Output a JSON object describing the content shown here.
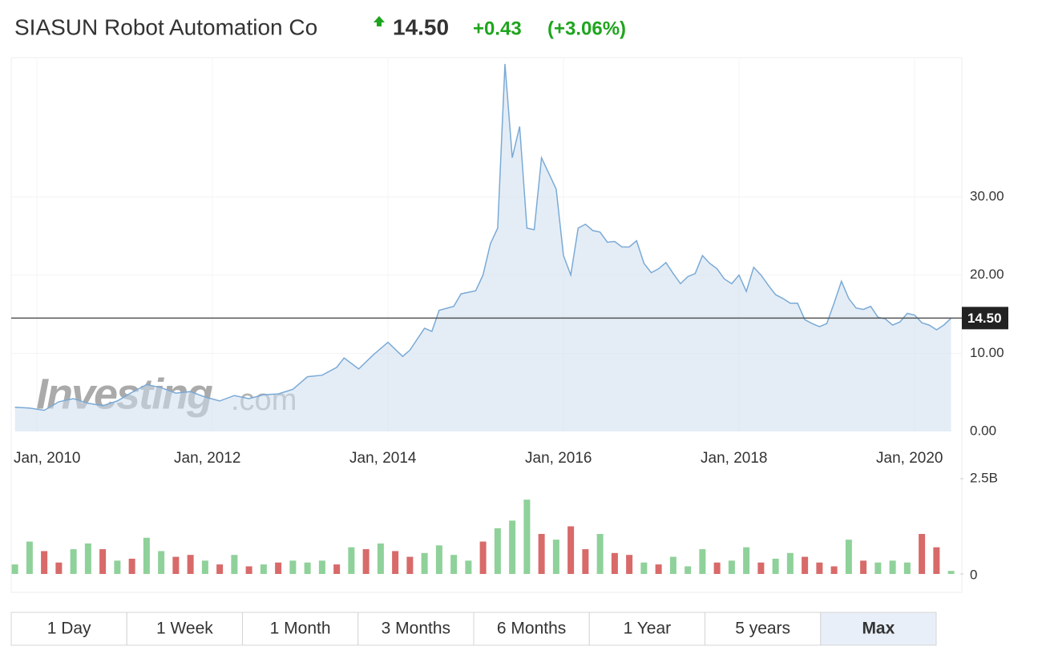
{
  "header": {
    "title": "SIASUN Robot Automation Co",
    "price": "14.50",
    "change": "+0.43",
    "change_pct": "(+3.06%)"
  },
  "watermark": {
    "brand": "Investing",
    "suffix": ".com"
  },
  "chart_data": [
    {
      "type": "area",
      "color": "#7aaad6",
      "x": [
        "2009-10",
        "2009-12",
        "2010-02",
        "2010-04",
        "2010-06",
        "2010-08",
        "2010-10",
        "2010-12",
        "2011-02",
        "2011-04",
        "2011-06",
        "2011-08",
        "2011-10",
        "2011-12",
        "2012-02",
        "2012-04",
        "2012-06",
        "2012-08",
        "2012-10",
        "2012-12",
        "2013-02",
        "2013-04",
        "2013-06",
        "2013-07",
        "2013-09",
        "2013-11",
        "2014-01",
        "2014-03",
        "2014-04",
        "2014-06",
        "2014-07",
        "2014-08",
        "2014-10",
        "2014-11",
        "2015-01",
        "2015-02",
        "2015-03",
        "2015-04",
        "2015-05",
        "2015-06",
        "2015-07",
        "2015-08",
        "2015-09",
        "2015-10",
        "2015-11",
        "2015-12",
        "2016-01",
        "2016-02",
        "2016-03",
        "2016-04",
        "2016-05",
        "2016-06",
        "2016-07",
        "2016-08",
        "2016-09",
        "2016-10",
        "2016-11",
        "2016-12",
        "2017-01",
        "2017-02",
        "2017-03",
        "2017-04",
        "2017-05",
        "2017-06",
        "2017-07",
        "2017-08",
        "2017-09",
        "2017-10",
        "2017-11",
        "2017-12",
        "2018-01",
        "2018-02",
        "2018-03",
        "2018-04",
        "2018-05",
        "2018-06",
        "2018-07",
        "2018-08",
        "2018-09",
        "2018-10",
        "2018-11",
        "2018-12",
        "2019-01",
        "2019-02",
        "2019-03",
        "2019-04",
        "2019-05",
        "2019-06",
        "2019-07",
        "2019-08",
        "2019-09",
        "2019-10",
        "2019-11",
        "2019-12",
        "2020-01",
        "2020-02",
        "2020-03",
        "2020-04",
        "2020-05",
        "2020-06"
      ],
      "values": [
        3.1,
        3.0,
        2.7,
        3.8,
        4.2,
        3.6,
        3.3,
        3.9,
        5.0,
        6.0,
        5.6,
        4.9,
        5.1,
        4.4,
        3.9,
        4.6,
        4.2,
        4.7,
        4.8,
        5.4,
        7.0,
        7.2,
        8.2,
        9.4,
        8.0,
        9.8,
        11.4,
        9.6,
        10.4,
        13.2,
        12.8,
        15.5,
        16.0,
        17.6,
        18.0,
        20.0,
        24.0,
        26.0,
        47.0,
        35.0,
        39.0,
        26.0,
        25.8,
        35.0,
        33.0,
        31.0,
        22.5,
        20.0,
        26.0,
        26.5,
        25.7,
        25.5,
        24.2,
        24.3,
        23.6,
        23.6,
        24.4,
        21.5,
        20.3,
        20.8,
        21.6,
        20.2,
        18.9,
        19.8,
        20.2,
        22.5,
        21.5,
        20.8,
        19.5,
        18.9,
        20.0,
        17.9,
        21.0,
        20.0,
        18.7,
        17.5,
        17.0,
        16.4,
        16.4,
        14.3,
        13.8,
        13.4,
        13.8,
        16.4,
        19.2,
        17.0,
        15.8,
        15.6,
        16.0,
        14.6,
        14.4,
        13.6,
        14.0,
        15.1,
        14.9,
        13.9,
        13.6,
        13.0,
        13.6,
        14.5
      ],
      "ylim": [
        0,
        47.5
      ],
      "yticks": [
        {
          "value": 0,
          "label": "0.00"
        },
        {
          "value": 10,
          "label": "10.00"
        },
        {
          "value": 20,
          "label": "20.00"
        },
        {
          "value": 30,
          "label": "30.00"
        }
      ],
      "xticks": [
        {
          "value": "2010-01",
          "label": "Jan, 2010"
        },
        {
          "value": "2012-01",
          "label": "Jan, 2012"
        },
        {
          "value": "2014-01",
          "label": "Jan, 2014"
        },
        {
          "value": "2016-01",
          "label": "Jan, 2016"
        },
        {
          "value": "2018-01",
          "label": "Jan, 2018"
        },
        {
          "value": "2020-01",
          "label": "Jan, 2020"
        }
      ],
      "current_price": {
        "value": 14.5,
        "label": "14.50"
      },
      "grid": true
    },
    {
      "type": "bar",
      "x": [
        "2009-10",
        "2009-12",
        "2010-02",
        "2010-04",
        "2010-06",
        "2010-08",
        "2010-10",
        "2010-12",
        "2011-02",
        "2011-04",
        "2011-06",
        "2011-08",
        "2011-10",
        "2011-12",
        "2012-02",
        "2012-04",
        "2012-06",
        "2012-08",
        "2012-10",
        "2012-12",
        "2013-02",
        "2013-04",
        "2013-06",
        "2013-08",
        "2013-10",
        "2013-12",
        "2014-02",
        "2014-04",
        "2014-06",
        "2014-08",
        "2014-10",
        "2014-12",
        "2015-02",
        "2015-04",
        "2015-06",
        "2015-08",
        "2015-10",
        "2015-12",
        "2016-02",
        "2016-04",
        "2016-06",
        "2016-08",
        "2016-10",
        "2016-12",
        "2017-02",
        "2017-04",
        "2017-06",
        "2017-08",
        "2017-10",
        "2017-12",
        "2018-02",
        "2018-04",
        "2018-06",
        "2018-08",
        "2018-10",
        "2018-12",
        "2019-02",
        "2019-04",
        "2019-06",
        "2019-08",
        "2019-10",
        "2019-12",
        "2020-02",
        "2020-04",
        "2020-06"
      ],
      "values": [
        0.25,
        0.85,
        0.6,
        0.3,
        0.65,
        0.8,
        0.65,
        0.35,
        0.4,
        0.95,
        0.6,
        0.45,
        0.5,
        0.35,
        0.25,
        0.5,
        0.2,
        0.25,
        0.3,
        0.35,
        0.3,
        0.35,
        0.25,
        0.7,
        0.65,
        0.8,
        0.6,
        0.45,
        0.55,
        0.75,
        0.5,
        0.35,
        0.85,
        1.2,
        1.4,
        1.95,
        1.05,
        0.9,
        1.25,
        0.65,
        1.05,
        0.55,
        0.5,
        0.3,
        0.25,
        0.45,
        0.2,
        0.65,
        0.3,
        0.35,
        0.7,
        0.3,
        0.4,
        0.55,
        0.45,
        0.3,
        0.2,
        0.9,
        0.35,
        0.3,
        0.35,
        0.3,
        1.05,
        0.7,
        0.08
      ],
      "colors": [
        "#8fd19a",
        "#8fd19a",
        "#d86a6a",
        "#d86a6a",
        "#8fd19a",
        "#8fd19a",
        "#d86a6a",
        "#8fd19a",
        "#d86a6a",
        "#8fd19a",
        "#8fd19a",
        "#d86a6a",
        "#d86a6a",
        "#8fd19a",
        "#d86a6a",
        "#8fd19a",
        "#d86a6a",
        "#8fd19a",
        "#d86a6a",
        "#8fd19a",
        "#8fd19a",
        "#8fd19a",
        "#d86a6a",
        "#8fd19a",
        "#d86a6a",
        "#8fd19a",
        "#d86a6a",
        "#d86a6a",
        "#8fd19a",
        "#8fd19a",
        "#8fd19a",
        "#8fd19a",
        "#d86a6a",
        "#8fd19a",
        "#8fd19a",
        "#8fd19a",
        "#d86a6a",
        "#8fd19a",
        "#d86a6a",
        "#d86a6a",
        "#8fd19a",
        "#d86a6a",
        "#d86a6a",
        "#8fd19a",
        "#d86a6a",
        "#8fd19a",
        "#8fd19a",
        "#8fd19a",
        "#d86a6a",
        "#8fd19a",
        "#8fd19a",
        "#d86a6a",
        "#8fd19a",
        "#8fd19a",
        "#d86a6a",
        "#d86a6a",
        "#d86a6a",
        "#8fd19a",
        "#d86a6a",
        "#8fd19a",
        "#8fd19a",
        "#8fd19a",
        "#d86a6a",
        "#d86a6a",
        "#8fd19a"
      ],
      "ylim": [
        0,
        2.5
      ],
      "yticks": [
        0,
        {
          "value": 2.5,
          "label": "2.5B"
        }
      ]
    }
  ],
  "range_buttons": {
    "labels": [
      "1 Day",
      "1 Week",
      "1 Month",
      "3 Months",
      "6 Months",
      "1 Year",
      "5 years",
      "Max"
    ],
    "active": "Max"
  }
}
